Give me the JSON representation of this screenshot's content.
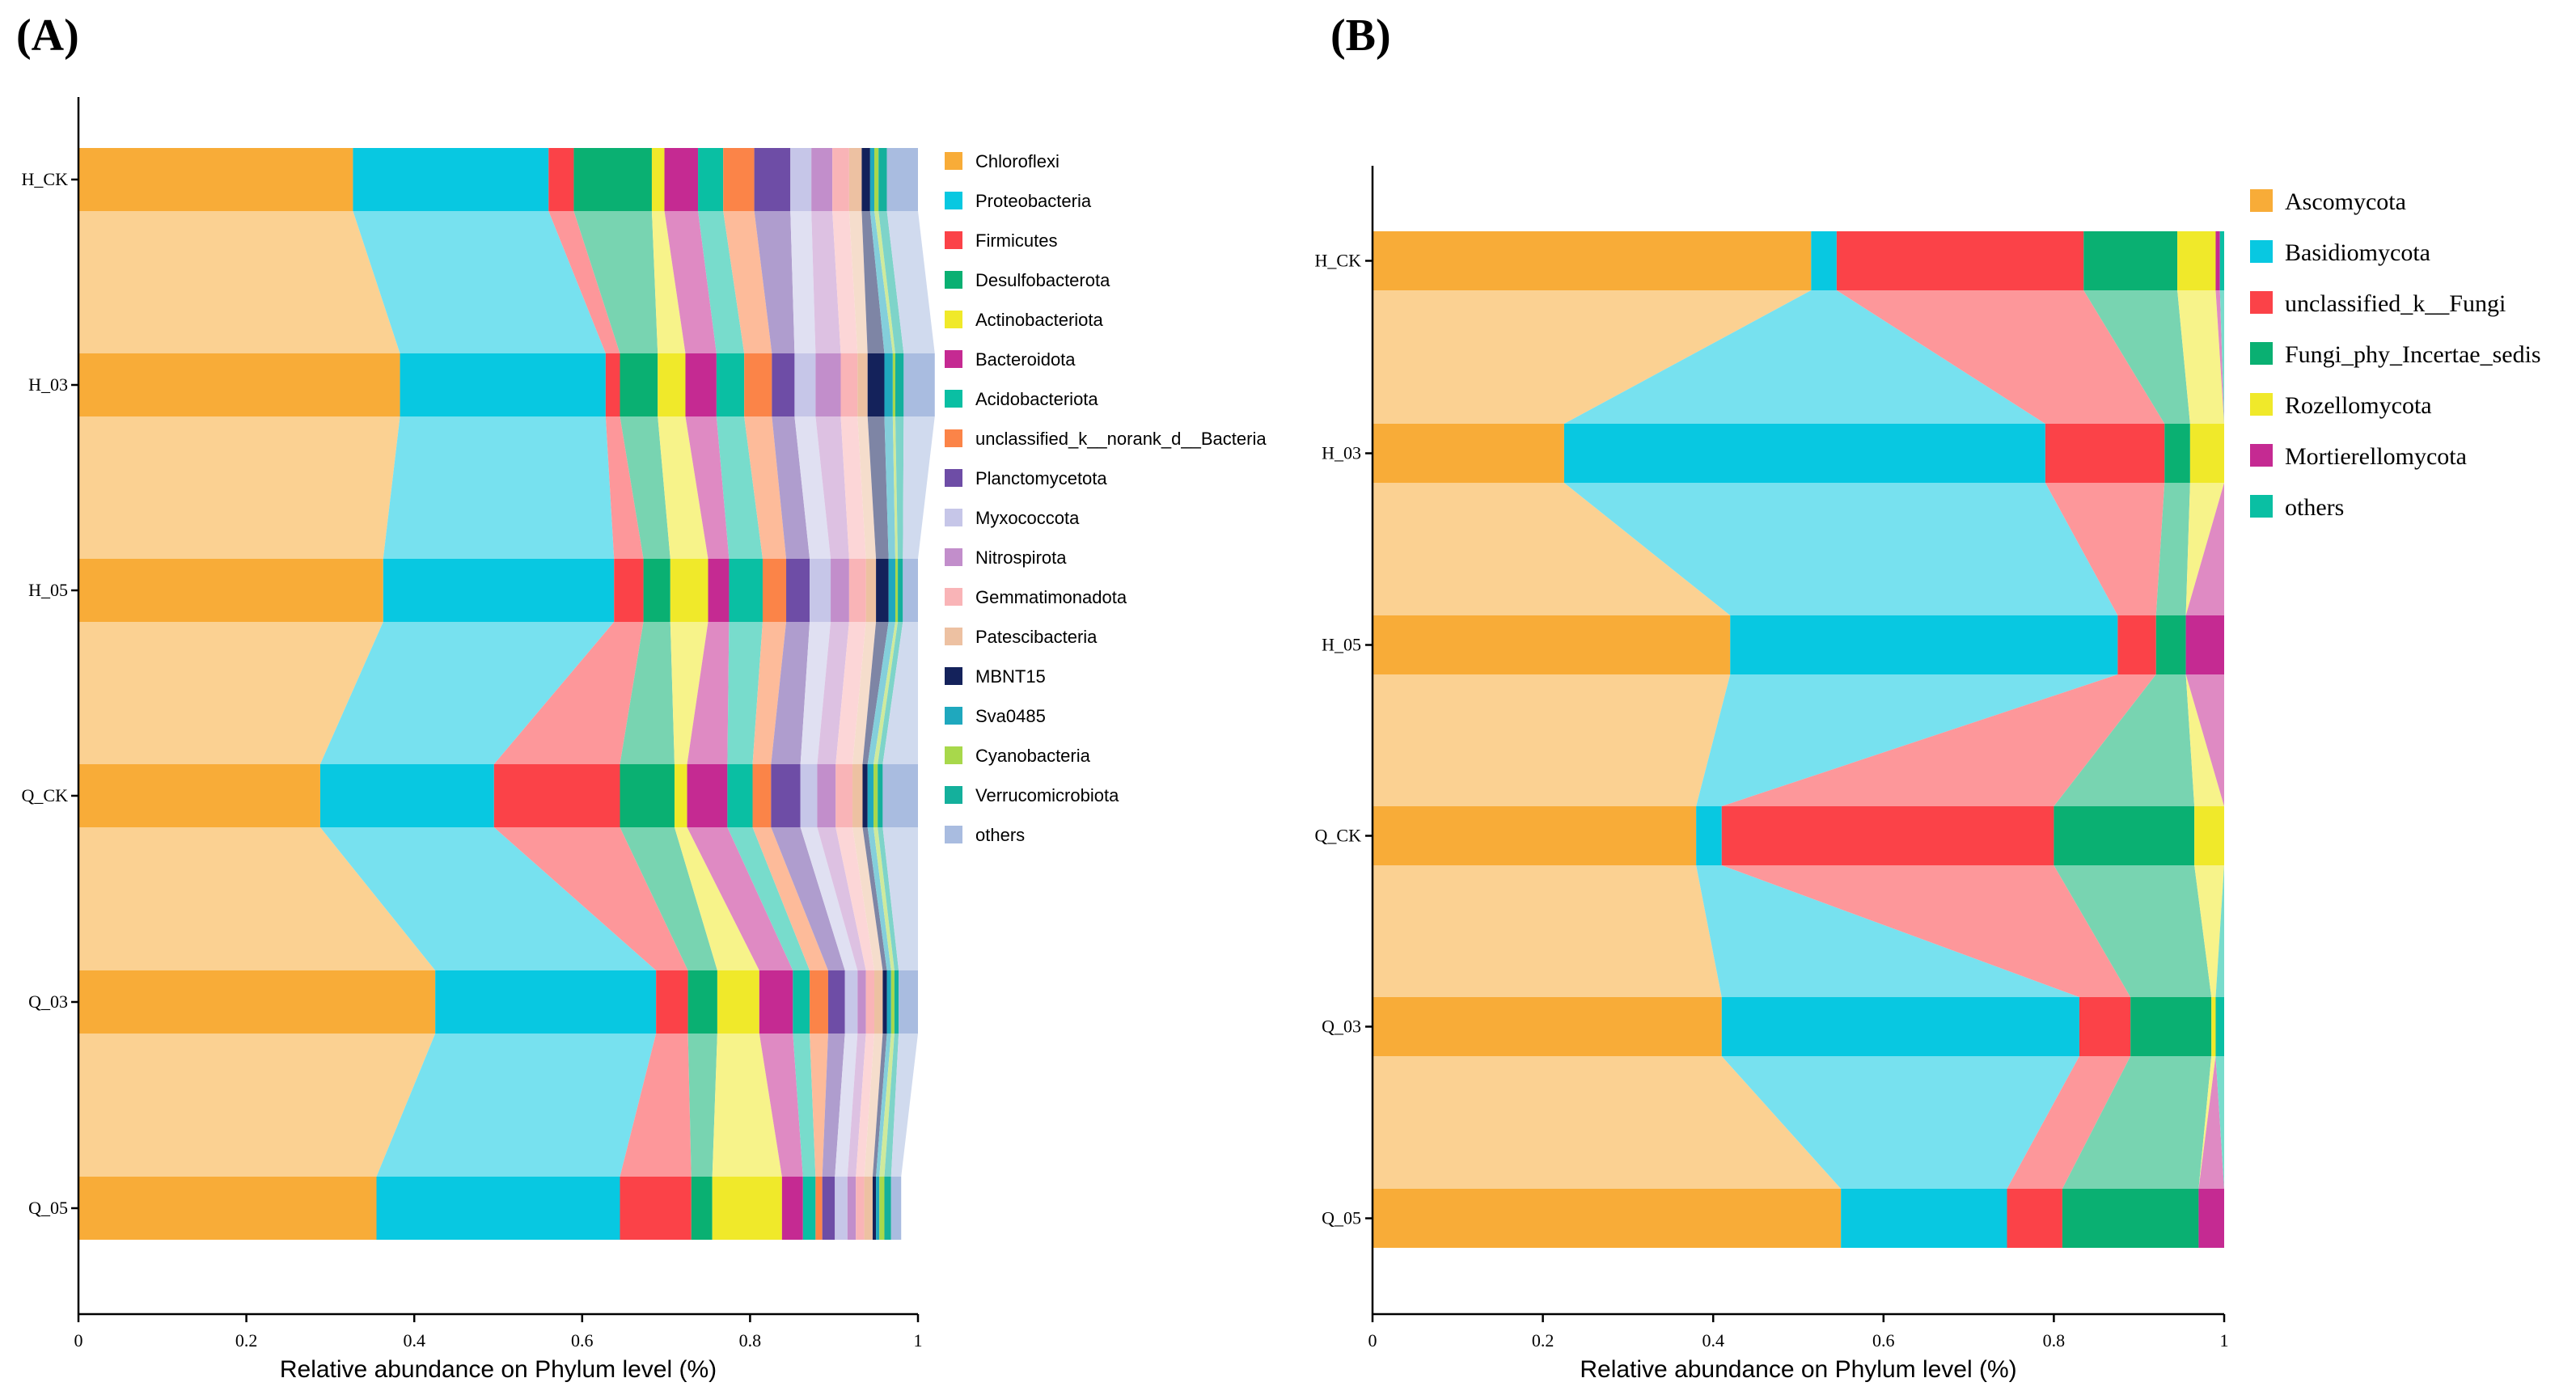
{
  "chart_data": [
    {
      "panel_label": "(A)",
      "type": "stacked-bar-flow",
      "orientation": "horizontal",
      "xlabel": "Relative abundance on Phylum level (%)",
      "xlim": [
        0,
        1
      ],
      "xticks": [
        "0",
        "0.2",
        "0.4",
        "0.6",
        "0.8",
        "1"
      ],
      "samples": [
        "H_CK",
        "H_03",
        "H_05",
        "Q_CK",
        "Q_03",
        "Q_05"
      ],
      "legend_position": "right",
      "series": [
        {
          "name": "Chloroflexi",
          "color": "#F8AC38",
          "values": [
            0.327,
            0.383,
            0.363,
            0.288,
            0.425,
            0.355
          ]
        },
        {
          "name": "Proteobacteria",
          "color": "#08C8E1",
          "values": [
            0.233,
            0.245,
            0.275,
            0.207,
            0.263,
            0.29
          ]
        },
        {
          "name": "Firmicutes",
          "color": "#FB4248",
          "values": [
            0.03,
            0.017,
            0.035,
            0.15,
            0.038,
            0.085
          ]
        },
        {
          "name": "Desulfobacterota",
          "color": "#0AB072",
          "values": [
            0.093,
            0.045,
            0.032,
            0.065,
            0.035,
            0.025
          ]
        },
        {
          "name": "Actinobacteriota",
          "color": "#F0E92A",
          "values": [
            0.015,
            0.033,
            0.045,
            0.015,
            0.05,
            0.083
          ]
        },
        {
          "name": "Bacteroidota",
          "color": "#C52A92",
          "values": [
            0.04,
            0.037,
            0.025,
            0.048,
            0.04,
            0.025
          ]
        },
        {
          "name": "Acidobacteriota",
          "color": "#0ABFA3",
          "values": [
            0.03,
            0.033,
            0.04,
            0.03,
            0.02,
            0.015
          ]
        },
        {
          "name": "unclassified_k__norank_d__Bacteria",
          "color": "#FB8448",
          "values": [
            0.037,
            0.033,
            0.028,
            0.022,
            0.022,
            0.008
          ]
        },
        {
          "name": "Planctomycetota",
          "color": "#6E4DA6",
          "values": [
            0.043,
            0.027,
            0.028,
            0.035,
            0.02,
            0.015
          ]
        },
        {
          "name": "Myxococcota",
          "color": "#C6C6E8",
          "values": [
            0.025,
            0.025,
            0.025,
            0.02,
            0.015,
            0.015
          ]
        },
        {
          "name": "Nitrospirota",
          "color": "#C28ECB",
          "values": [
            0.025,
            0.03,
            0.022,
            0.022,
            0.01,
            0.01
          ]
        },
        {
          "name": "Gemmatimonadota",
          "color": "#F9B4B7",
          "values": [
            0.02,
            0.02,
            0.02,
            0.02,
            0.01,
            0.01
          ]
        },
        {
          "name": "Patescibacteria",
          "color": "#EDC1A2",
          "values": [
            0.015,
            0.012,
            0.012,
            0.012,
            0.01,
            0.01
          ]
        },
        {
          "name": "MBNT15",
          "color": "#14225B",
          "values": [
            0.01,
            0.02,
            0.015,
            0.006,
            0.005,
            0.004
          ]
        },
        {
          "name": "Sva0485",
          "color": "#1FA8BE",
          "values": [
            0.005,
            0.01,
            0.008,
            0.007,
            0.005,
            0.004
          ]
        },
        {
          "name": "Cyanobacteria",
          "color": "#A8D84B",
          "values": [
            0.005,
            0.003,
            0.003,
            0.005,
            0.004,
            0.006
          ]
        },
        {
          "name": "Verrucomicrobiota",
          "color": "#14B09C",
          "values": [
            0.01,
            0.01,
            0.006,
            0.006,
            0.005,
            0.008
          ]
        },
        {
          "name": "others",
          "color": "#A9BCE0",
          "values": [
            0.037,
            0.037,
            0.018,
            0.042,
            0.023,
            0.012
          ]
        }
      ]
    },
    {
      "panel_label": "(B)",
      "type": "stacked-bar-flow",
      "orientation": "horizontal",
      "xlabel": "Relative abundance on Phylum level (%)",
      "xlim": [
        0,
        1
      ],
      "xticks": [
        "0",
        "0.2",
        "0.4",
        "0.6",
        "0.8",
        "1"
      ],
      "samples": [
        "H_CK",
        "H_03",
        "H_05",
        "Q_CK",
        "Q_03",
        "Q_05"
      ],
      "legend_position": "right",
      "series": [
        {
          "name": "Ascomycota",
          "color": "#F8AC38",
          "values": [
            0.515,
            0.225,
            0.42,
            0.38,
            0.41,
            0.55
          ]
        },
        {
          "name": "Basidiomycota",
          "color": "#08C8E1",
          "values": [
            0.03,
            0.565,
            0.455,
            0.03,
            0.42,
            0.195
          ]
        },
        {
          "name": "unclassified_k__Fungi",
          "color": "#FB4248",
          "values": [
            0.29,
            0.14,
            0.045,
            0.39,
            0.06,
            0.065
          ]
        },
        {
          "name": "Fungi_phy_Incertae_sedis",
          "color": "#0AB072",
          "values": [
            0.11,
            0.03,
            0.035,
            0.165,
            0.095,
            0.16
          ]
        },
        {
          "name": "Rozellomycota",
          "color": "#F0E92A",
          "values": [
            0.045,
            0.04,
            0.0,
            0.035,
            0.005,
            0.0
          ]
        },
        {
          "name": "Mortierellomycota",
          "color": "#C52A92",
          "values": [
            0.005,
            0.0,
            0.045,
            0.0,
            0.0,
            0.03
          ]
        },
        {
          "name": "others",
          "color": "#0ABFA3",
          "values": [
            0.005,
            0.0,
            0.0,
            0.0,
            0.01,
            0.0
          ]
        }
      ]
    }
  ]
}
